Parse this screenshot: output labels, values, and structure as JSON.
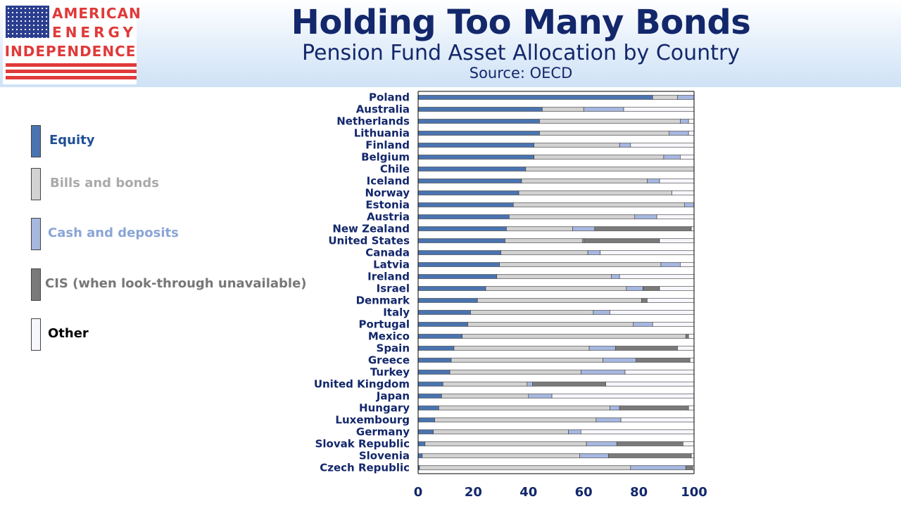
{
  "logo": {
    "line1": "AMERICAN",
    "line2": "ENERGY",
    "line3": "INDEPENDENCE"
  },
  "header": {
    "title": "Holding Too Many Bonds",
    "subtitle": "Pension Fund Asset Allocation by Country",
    "source": "Source: OECD"
  },
  "colors": {
    "equity": "#4a74b0",
    "bonds": "#d2d2d2",
    "cash": "#a6b7e0",
    "cis": "#7a7a7a",
    "other": "#f6f6fd",
    "text": "#13276b"
  },
  "legend": [
    {
      "label": "Equity",
      "color": "#4a74b0",
      "text_color": "#1f4f96"
    },
    {
      "label": "Bills and bonds",
      "color": "#d2d2d2",
      "text_color": "#aaaaaa"
    },
    {
      "label": "Cash and deposits",
      "color": "#a6b7e0",
      "text_color": "#8aa5d6"
    },
    {
      "label": "CIS (when look-through unavailable)",
      "color": "#7a7a7a",
      "text_color": "#777777"
    },
    {
      "label": "Other",
      "color": "#f6f6fd",
      "text_color": "#000000"
    }
  ],
  "chart_data": {
    "type": "bar",
    "orientation": "horizontal",
    "stacked": true,
    "xlim": [
      0,
      100
    ],
    "xticks": [
      0,
      20,
      40,
      60,
      80,
      100
    ],
    "title": "",
    "xlabel": "",
    "ylabel": "",
    "grid": false,
    "categories": [
      "Poland",
      "Australia",
      "Netherlands",
      "Lithuania",
      "Finland",
      "Belgium",
      "Chile",
      "Iceland",
      "Norway",
      "Estonia",
      "Austria",
      "New Zealand",
      "United States",
      "Canada",
      "Latvia",
      "Ireland",
      "Israel",
      "Denmark",
      "Italy",
      "Portugal",
      "Mexico",
      "Spain",
      "Greece",
      "Turkey",
      "United Kingdom",
      "Japan",
      "Hungary",
      "Luxembourg",
      "Germany",
      "Slovak Republic",
      "Slovenia",
      "Czech Republic"
    ],
    "series": [
      {
        "name": "Equity",
        "values": [
          85,
          45,
          44,
          44,
          42,
          42,
          39,
          37.5,
          36.5,
          34.5,
          33,
          32,
          31.5,
          30,
          29.5,
          28.5,
          24.5,
          21.5,
          19,
          18,
          16,
          13,
          12,
          11.5,
          9,
          8.5,
          7.5,
          6,
          5.5,
          2.5,
          1.5,
          0.5
        ]
      },
      {
        "name": "Bills and bonds",
        "values": [
          9,
          15,
          51,
          47,
          31,
          47,
          61,
          45.5,
          55.5,
          62,
          45.5,
          24,
          28,
          31.5,
          58.5,
          41.5,
          51,
          59.5,
          44.5,
          60,
          81,
          49,
          55,
          47.5,
          30.5,
          31.5,
          62,
          58.5,
          49,
          58.5,
          57,
          76.5
        ]
      },
      {
        "name": "Cash and deposits",
        "values": [
          6,
          14.5,
          3,
          7,
          4,
          6,
          0,
          4.5,
          0,
          3.5,
          8,
          8,
          0.5,
          4.5,
          7,
          3,
          6,
          0,
          6,
          7,
          0,
          9.5,
          12,
          16,
          2,
          8.5,
          3.5,
          9,
          4.5,
          11,
          10.5,
          20
        ]
      },
      {
        "name": "CIS (when look-through unavailable)",
        "values": [
          0,
          0,
          0,
          0,
          0,
          0,
          0,
          0,
          0,
          0,
          0,
          35,
          27.5,
          0,
          0,
          0,
          6,
          2,
          0,
          0,
          1,
          22.5,
          19.5,
          0,
          26.5,
          0,
          25,
          0,
          0,
          24,
          30,
          2.5
        ]
      },
      {
        "name": "Other",
        "values": [
          0,
          25.5,
          2,
          2,
          23,
          5,
          0,
          12.5,
          8,
          0,
          13.5,
          1,
          12.5,
          34,
          5,
          27,
          12.5,
          17,
          30.5,
          15,
          2,
          6,
          1.5,
          25,
          32,
          51.5,
          2,
          26.5,
          41,
          4,
          1,
          0.5
        ]
      }
    ]
  }
}
